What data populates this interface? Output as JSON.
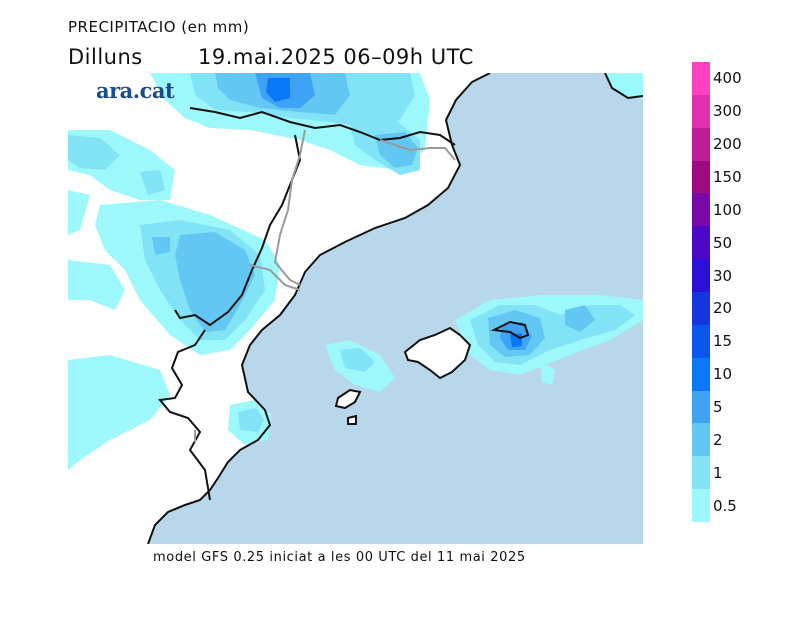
{
  "header": {
    "title": "PRECIPITACIO (en mm)",
    "day": "Dilluns",
    "datetime": "19.mai.2025 06–09h UTC"
  },
  "logo": {
    "text": "ara.cat",
    "color": "#1b4b8a"
  },
  "footer": {
    "text": "model GFS 0.25 iniciat a les 00 UTC del 11 mai 2025"
  },
  "legend": {
    "levels": [
      "0.5",
      "1",
      "2",
      "5",
      "10",
      "15",
      "20",
      "30",
      "50",
      "100",
      "150",
      "200",
      "300",
      "400"
    ],
    "colors_top_to_bottom": [
      "#ff40c0",
      "#e030b0",
      "#c01c98",
      "#a00a80",
      "#7808a8",
      "#4c08c8",
      "#2a10d8",
      "#1436e0",
      "#0a55ec",
      "#0a78f8",
      "#3fa3f5",
      "#63c7f3",
      "#82e3f6",
      "#9cf8fb"
    ]
  },
  "map": {
    "sea_color": "#b9d7ea",
    "land_color": "#ffffff",
    "precip_colors": {
      "light": "#9cf8fb",
      "low": "#82e3f6",
      "mid": "#63c7f3",
      "high": "#3fa3f5",
      "peak": "#0a78f8"
    }
  }
}
